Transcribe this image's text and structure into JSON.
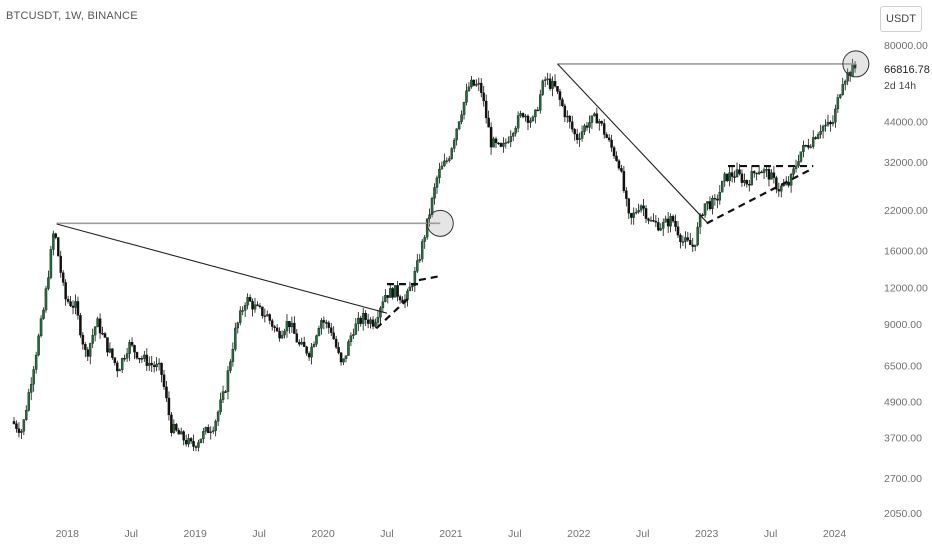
{
  "header": {
    "symbol_title": "BTCUSDT, 1W, BINANCE",
    "currency_button": "USDT"
  },
  "price_scale": {
    "last_price": "66816.78",
    "countdown": "2d 14h"
  },
  "colors": {
    "up_candle": "#1e6b3a",
    "down_candle": "#111111",
    "level_line": "#9e9e9e",
    "trend_line": "#222222",
    "axis_text": "#707070"
  },
  "chart_data": {
    "type": "candlestick",
    "title": "",
    "scale": "log",
    "ylim": [
      2050,
      80000
    ],
    "y_ticks": [
      80000,
      44000,
      32000,
      22000,
      16000,
      12000,
      9000,
      6500,
      4900,
      3700,
      2700,
      2050
    ],
    "y_tick_labels": [
      "80000.00",
      "44000.00",
      "32000.00",
      "22000.00",
      "16000.00",
      "12000.00",
      "9000.00",
      "6500.00",
      "4900.00",
      "3700.00",
      "2700.00",
      "2050.00"
    ],
    "x_ticks": [
      {
        "date": "2018-01",
        "label": "2018"
      },
      {
        "date": "2018-07",
        "label": "Jul"
      },
      {
        "date": "2019-01",
        "label": "2019"
      },
      {
        "date": "2019-07",
        "label": "Jul"
      },
      {
        "date": "2020-01",
        "label": "2020"
      },
      {
        "date": "2020-07",
        "label": "Jul"
      },
      {
        "date": "2021-01",
        "label": "2021"
      },
      {
        "date": "2021-07",
        "label": "Jul"
      },
      {
        "date": "2022-01",
        "label": "2022"
      },
      {
        "date": "2022-07",
        "label": "Jul"
      },
      {
        "date": "2023-01",
        "label": "2023"
      },
      {
        "date": "2023-07",
        "label": "Jul"
      },
      {
        "date": "2024-01",
        "label": "2024"
      }
    ],
    "price_path": [
      [
        "2017-08",
        4200
      ],
      [
        "2017-09",
        3900
      ],
      [
        "2017-10",
        6300
      ],
      [
        "2017-11",
        10000
      ],
      [
        "2017-12",
        19000
      ],
      [
        "2018-01",
        11000
      ],
      [
        "2018-02",
        10300
      ],
      [
        "2018-03",
        7000
      ],
      [
        "2018-04",
        9200
      ],
      [
        "2018-05",
        7500
      ],
      [
        "2018-06",
        6300
      ],
      [
        "2018-07",
        7700
      ],
      [
        "2018-08",
        7000
      ],
      [
        "2018-09",
        6600
      ],
      [
        "2018-10",
        6300
      ],
      [
        "2018-11",
        4000
      ],
      [
        "2018-12",
        3700
      ],
      [
        "2019-01",
        3450
      ],
      [
        "2019-02",
        3800
      ],
      [
        "2019-03",
        4100
      ],
      [
        "2019-04",
        5300
      ],
      [
        "2019-05",
        8500
      ],
      [
        "2019-06",
        11000
      ],
      [
        "2019-07",
        10100
      ],
      [
        "2019-08",
        9600
      ],
      [
        "2019-09",
        8300
      ],
      [
        "2019-10",
        9200
      ],
      [
        "2019-11",
        7600
      ],
      [
        "2019-12",
        7200
      ],
      [
        "2020-01",
        9400
      ],
      [
        "2020-02",
        8600
      ],
      [
        "2020-03",
        6400
      ],
      [
        "2020-04",
        8600
      ],
      [
        "2020-05",
        9450
      ],
      [
        "2020-06",
        9140
      ],
      [
        "2020-07",
        11350
      ],
      [
        "2020-08",
        11650
      ],
      [
        "2020-09",
        10780
      ],
      [
        "2020-10",
        13800
      ],
      [
        "2020-11",
        19700
      ],
      [
        "2020-12",
        29000
      ],
      [
        "2021-01",
        33100
      ],
      [
        "2021-02",
        45200
      ],
      [
        "2021-03",
        58800
      ],
      [
        "2021-04",
        57700
      ],
      [
        "2021-05",
        37300
      ],
      [
        "2021-06",
        35000
      ],
      [
        "2021-07",
        41500
      ],
      [
        "2021-08",
        47100
      ],
      [
        "2021-09",
        43800
      ],
      [
        "2021-10",
        61300
      ],
      [
        "2021-11",
        57000
      ],
      [
        "2021-12",
        46300
      ],
      [
        "2022-01",
        38500
      ],
      [
        "2022-02",
        43200
      ],
      [
        "2022-03",
        45500
      ],
      [
        "2022-04",
        37600
      ],
      [
        "2022-05",
        31800
      ],
      [
        "2022-06",
        19900
      ],
      [
        "2022-07",
        23300
      ],
      [
        "2022-08",
        20000
      ],
      [
        "2022-09",
        19400
      ],
      [
        "2022-10",
        20500
      ],
      [
        "2022-11",
        17200
      ],
      [
        "2022-12",
        16500
      ],
      [
        "2023-01",
        23100
      ],
      [
        "2023-02",
        23100
      ],
      [
        "2023-03",
        28500
      ],
      [
        "2023-04",
        29200
      ],
      [
        "2023-05",
        27200
      ],
      [
        "2023-06",
        30500
      ],
      [
        "2023-07",
        29200
      ],
      [
        "2023-08",
        26000
      ],
      [
        "2023-09",
        27000
      ],
      [
        "2023-10",
        34500
      ],
      [
        "2023-11",
        37700
      ],
      [
        "2023-12",
        42300
      ],
      [
        "2024-01",
        42600
      ],
      [
        "2024-02",
        61200
      ],
      [
        "2024-03",
        66816
      ]
    ],
    "annotations": [
      {
        "type": "level_line",
        "from": [
          "2017-12",
          19800
        ],
        "to": [
          "2020-12",
          19800
        ]
      },
      {
        "type": "level_line",
        "from": [
          "2021-11",
          69000
        ],
        "to": [
          "2024-03",
          69000
        ]
      },
      {
        "type": "trend_line",
        "from": [
          "2017-12",
          19700
        ],
        "to": [
          "2020-07",
          9800
        ]
      },
      {
        "type": "trend_line",
        "from": [
          "2021-11",
          69000
        ],
        "to": [
          "2023-01",
          20000
        ]
      },
      {
        "type": "dashed_line",
        "from": [
          "2020-07",
          12300
        ],
        "to": [
          "2020-10",
          12300
        ]
      },
      {
        "type": "dashed_line",
        "from": [
          "2020-06",
          8700
        ],
        "to": [
          "2020-09",
          11000
        ]
      },
      {
        "type": "dashed_line",
        "from": [
          "2020-10",
          12700
        ],
        "to": [
          "2020-12",
          13100
        ]
      },
      {
        "type": "dashed_line",
        "from": [
          "2023-03",
          31000
        ],
        "to": [
          "2023-11",
          31000
        ]
      },
      {
        "type": "dashed_line",
        "from": [
          "2023-01",
          19800
        ],
        "to": [
          "2023-11",
          30500
        ]
      },
      {
        "type": "circle",
        "at": [
          "2020-12",
          19800
        ]
      },
      {
        "type": "circle",
        "at": [
          "2024-03",
          69000
        ]
      }
    ]
  }
}
